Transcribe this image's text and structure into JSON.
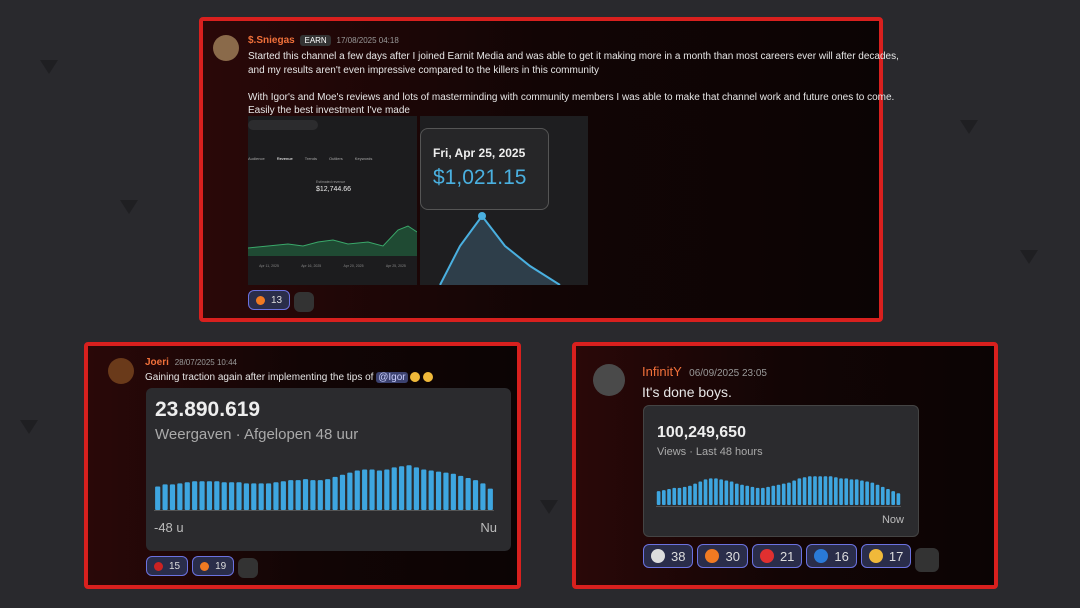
{
  "posts": [
    {
      "author": "$.Sniegas",
      "badge": "EARN",
      "date": "17/08/2025 04:18",
      "lines": [
        "Started this channel a few days after I joined Earnit Media and was able to get it making more in a month than most careers ever will after decades,",
        "and my results aren't even impressive compared to the killers in this community",
        "With Igor's and Moe's reviews and lots of masterminding with community members I was able to make that channel work and future ones to come.",
        "Easily the best investment I've made"
      ],
      "screenshot": {
        "tabs": [
          "Audience",
          "Revenue",
          "Trends",
          "Outliers",
          "Keywords"
        ],
        "label": "Estimated revenue",
        "total": "$12,744.66",
        "dates": [
          "Apr 11, 2025",
          "Apr 16, 2025",
          "Apr 20, 2025",
          "Apr 25, 2025"
        ]
      },
      "tooltip": {
        "date": "Fri, Apr 25, 2025",
        "amount": "$1,021.15"
      },
      "reactions": [
        13
      ]
    },
    {
      "author": "Joeri",
      "date": "28/07/2025 10:44",
      "text": "Gaining traction again after implementing the tips of",
      "mention": "@Igor",
      "embed": {
        "value": "23.890.619",
        "caption": "Weergaven · Afgelopen 48 uur",
        "start": "-48 u",
        "end": "Nu",
        "ylim": [
          0,
          45
        ],
        "bars": [
          22,
          24,
          24,
          25,
          26,
          27,
          27,
          27,
          27,
          26,
          26,
          26,
          25,
          25,
          25,
          25,
          26,
          27,
          28,
          28,
          29,
          28,
          28,
          29,
          31,
          33,
          35,
          37,
          38,
          38,
          37,
          38,
          40,
          41,
          42,
          40,
          38,
          37,
          36,
          35,
          34,
          32,
          30,
          28,
          25,
          20
        ]
      },
      "reactions": [
        15,
        19
      ]
    },
    {
      "author": "InfinitY",
      "date": "06/09/2025 23:05",
      "text": "It's done boys.",
      "embed": {
        "value": "100,249,650",
        "caption": "Views · Last 48 hours",
        "end": "Now",
        "ylim": [
          0,
          30
        ],
        "bars": [
          13,
          14,
          15,
          16,
          16,
          17,
          18,
          20,
          22,
          24,
          25,
          25,
          24,
          23,
          22,
          20,
          19,
          18,
          17,
          16,
          16,
          17,
          18,
          19,
          20,
          21,
          23,
          25,
          26,
          27,
          27,
          27,
          27,
          27,
          26,
          25,
          25,
          24,
          24,
          23,
          22,
          21,
          19,
          17,
          15,
          13,
          11
        ]
      },
      "reactions": [
        38,
        30,
        21,
        16,
        17
      ]
    }
  ]
}
